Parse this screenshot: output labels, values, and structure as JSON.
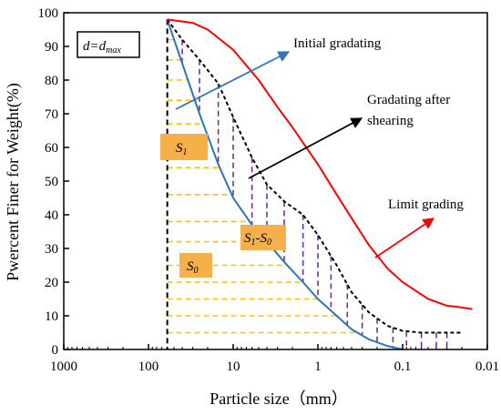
{
  "chart_data": {
    "type": "line",
    "xlabel": "Particle size（mm）",
    "ylabel": "Pwercent Finer for Weight(%)",
    "x_scale": "log",
    "x_reversed": true,
    "xlim": [
      1000,
      0.01
    ],
    "ylim": [
      0,
      100
    ],
    "x_ticks": [
      {
        "value": 1000,
        "label": "1000"
      },
      {
        "value": 100,
        "label": "100"
      },
      {
        "value": 10,
        "label": "10"
      },
      {
        "value": 1,
        "label": "1"
      },
      {
        "value": 0.1,
        "label": "0.1"
      },
      {
        "value": 0.01,
        "label": "0.01"
      }
    ],
    "y_ticks": [
      0,
      10,
      20,
      30,
      40,
      50,
      60,
      70,
      80,
      90,
      100
    ],
    "grid": false,
    "d_max": 60,
    "series": [
      {
        "key": "initial",
        "color": "#2e75b6",
        "dash": "solid",
        "x": [
          60,
          40,
          25,
          15,
          10,
          6,
          4,
          2.5,
          1.5,
          1,
          0.6,
          0.4,
          0.25,
          0.15,
          0.1
        ],
        "y": [
          98,
          85,
          70,
          55,
          45,
          37,
          32,
          26,
          20,
          15,
          10,
          6,
          3,
          1,
          0
        ]
      },
      {
        "key": "after_shearing",
        "color": "#000000",
        "dash": "dashed",
        "x": [
          60,
          40,
          25,
          15,
          10,
          6,
          4,
          2.5,
          1.5,
          1,
          0.6,
          0.4,
          0.25,
          0.15,
          0.1,
          0.06,
          0.03,
          0.02
        ],
        "y": [
          98,
          92,
          86,
          79,
          69,
          57,
          49,
          44,
          40,
          34,
          25,
          17,
          11,
          7,
          5.5,
          5,
          5,
          5
        ]
      },
      {
        "key": "limit",
        "color": "#ff0000",
        "dash": "solid",
        "x": [
          60,
          30,
          20,
          10,
          5,
          3,
          2,
          1,
          0.6,
          0.4,
          0.25,
          0.15,
          0.1,
          0.05,
          0.03,
          0.02,
          0.015
        ],
        "y": [
          98,
          97,
          95,
          89,
          80,
          72,
          66,
          55,
          46,
          39,
          31,
          24,
          20,
          15,
          13,
          12.5,
          12
        ]
      }
    ],
    "hatch": {
      "horizontal_color": "#ffc000",
      "vertical_color": "#7030a0",
      "horizontal_y": [
        5,
        10,
        15,
        20,
        25,
        32,
        38,
        46,
        54,
        60,
        67,
        74,
        80,
        86,
        92
      ],
      "vertical_x": [
        40,
        25,
        15,
        10,
        6,
        4,
        2.5,
        1.5,
        1,
        0.7,
        0.45,
        0.3,
        0.2,
        0.13,
        0.09,
        0.06,
        0.04,
        0.03
      ]
    },
    "annotations": {
      "dmax_label": "d=d",
      "dmax_sub": "max",
      "s1_label": "S",
      "s1_sub": "1",
      "s1s0_label_a": "S",
      "s1s0_sub_a": "1",
      "s1s0_dash": "-S",
      "s1s0_sub_b": "0",
      "s0_label": "S",
      "s0_sub": "0",
      "initial_label": "Initial gradating",
      "after_label_1": "Gradating after",
      "after_label_2": "shearing",
      "limit_label": "Limit grading",
      "box_fill": "#f6b04a"
    }
  }
}
